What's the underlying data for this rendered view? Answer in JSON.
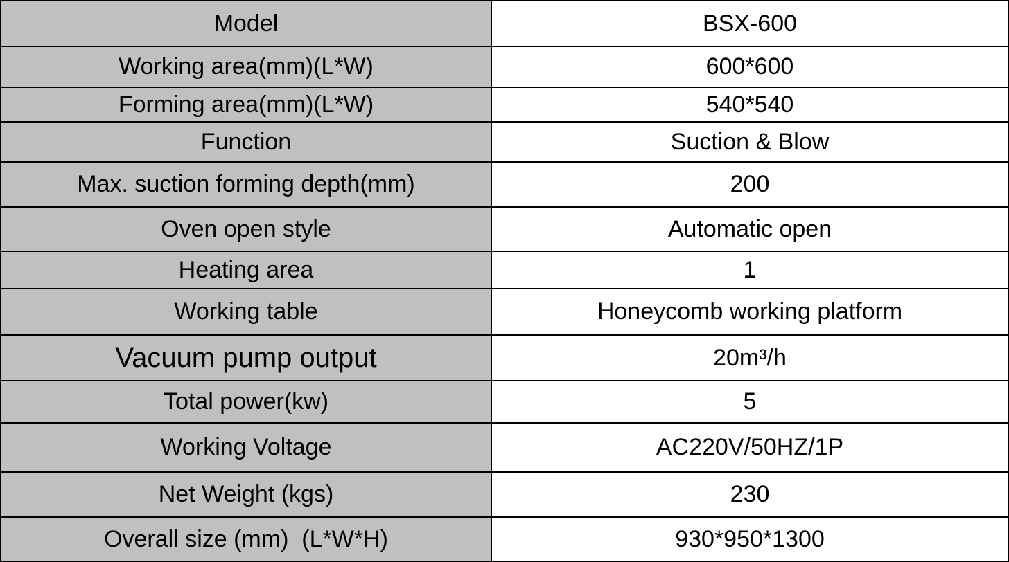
{
  "colors": {
    "label_bg": "#c0c0c0",
    "value_bg": "#ffffff",
    "border": "#000000"
  },
  "rows": [
    {
      "label": "Model",
      "value": "BSX-600"
    },
    {
      "label": "Working area(mm)(L*W)",
      "value": "600*600"
    },
    {
      "label": "Forming area(mm)(L*W)",
      "value": "540*540"
    },
    {
      "label": "Function",
      "value": "Suction & Blow"
    },
    {
      "label": "Max. suction forming depth(mm)",
      "value": "200"
    },
    {
      "label": "Oven open style",
      "value": "Automatic open"
    },
    {
      "label": "Heating area",
      "value": "1"
    },
    {
      "label": "Working table",
      "value": "Honeycomb working platform"
    },
    {
      "label": "Vacuum pump output",
      "value": "20m³/h"
    },
    {
      "label": "Total power(kw)",
      "value": "5"
    },
    {
      "label": "Working Voltage",
      "value": "AC220V/50HZ/1P"
    },
    {
      "label": "Net Weight (kgs)",
      "value": "230"
    },
    {
      "label": "Overall size (mm)  (L*W*H)",
      "value": "930*950*1300"
    }
  ]
}
